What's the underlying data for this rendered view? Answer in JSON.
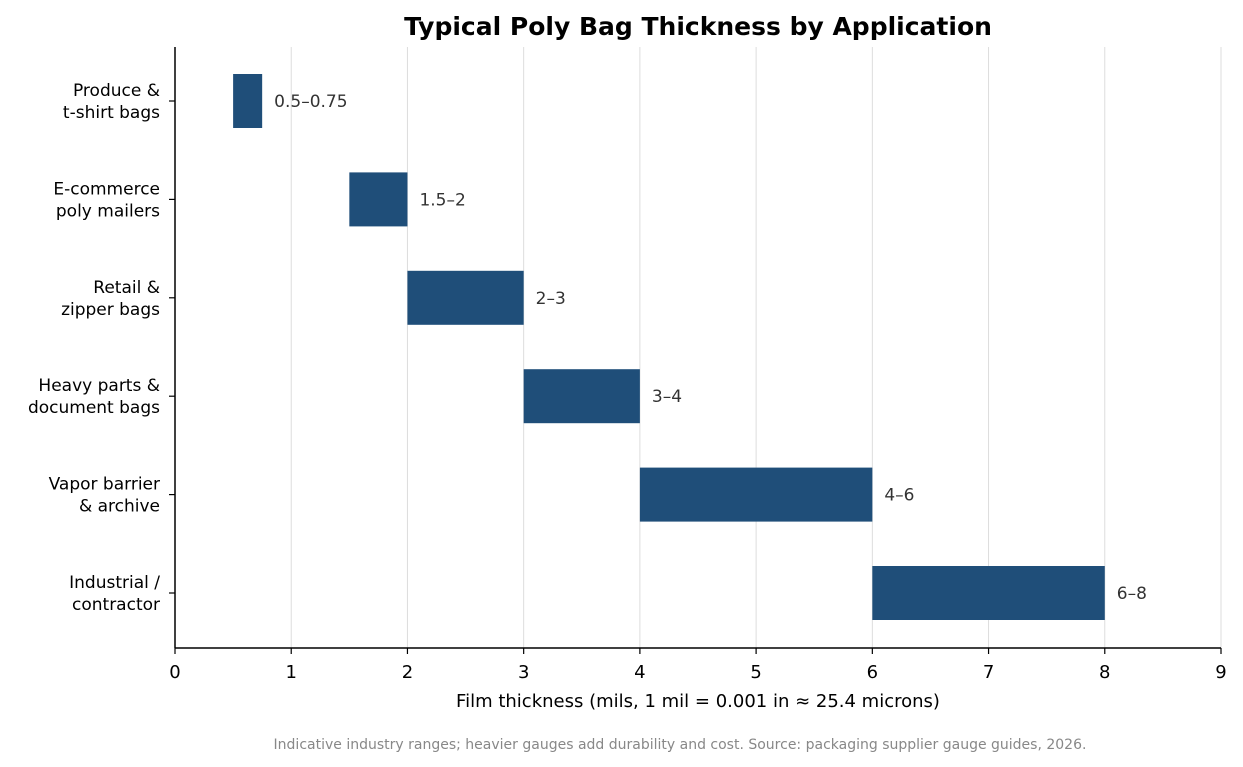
{
  "chart_data": {
    "type": "bar",
    "orientation": "horizontal-floating",
    "title": "Typical Poly Bag Thickness by Application",
    "xlabel": "Film thickness (mils, 1 mil = 0.001 in ≈ 25.4 microns)",
    "ylabel": "",
    "xlim": [
      0,
      9
    ],
    "xticks": [
      0,
      1,
      2,
      3,
      4,
      5,
      6,
      7,
      8,
      9
    ],
    "grid": "vertical",
    "categories": [
      [
        "Produce &",
        "t-shirt bags"
      ],
      [
        "E-commerce",
        "poly mailers"
      ],
      [
        "Retail &",
        "zipper bags"
      ],
      [
        "Heavy parts &",
        "document bags"
      ],
      [
        "Vapor barrier",
        "& archive"
      ],
      [
        "Industrial /",
        "contractor"
      ]
    ],
    "ranges": [
      [
        0.5,
        0.75
      ],
      [
        1.5,
        2
      ],
      [
        2,
        3
      ],
      [
        3,
        4
      ],
      [
        4,
        6
      ],
      [
        6,
        8
      ]
    ],
    "data_labels": [
      "0.5–0.75",
      "1.5–2",
      "2–3",
      "3–4",
      "4–6",
      "6–8"
    ],
    "bar_color": "#1f4e79",
    "footnote": "Indicative industry ranges; heavier gauges add durability and cost. Source: packaging supplier gauge guides, 2026."
  }
}
